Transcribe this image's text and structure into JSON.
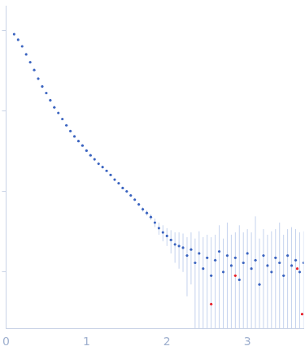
{
  "chart_data": {
    "type": "scatter",
    "log": "y",
    "grid": false,
    "tick_labels": "x",
    "xlim": [
      0,
      3.7
    ],
    "xticks": [
      0,
      1,
      2,
      3
    ],
    "ylim": [
      0.0002,
      2
    ],
    "yticks": [
      0.001,
      0.01,
      0.1,
      1
    ],
    "series": [
      {
        "color": "#3b64c0",
        "marker": "circle",
        "x": [
          0.1,
          0.15,
          0.2,
          0.25,
          0.3,
          0.35,
          0.4,
          0.45,
          0.5,
          0.55,
          0.6,
          0.65,
          0.7,
          0.75,
          0.8,
          0.85,
          0.9,
          0.95,
          1.0,
          1.05,
          1.1,
          1.15,
          1.2,
          1.25,
          1.3,
          1.35,
          1.4,
          1.45,
          1.5,
          1.55,
          1.6,
          1.65,
          1.7,
          1.75,
          1.8,
          1.85,
          1.9,
          1.95,
          2.0,
          2.05,
          2.1,
          2.15,
          2.2,
          2.25,
          2.3,
          2.35,
          2.4,
          2.45,
          2.5,
          2.55,
          2.6,
          2.65,
          2.7,
          2.75,
          2.8,
          2.85,
          2.9,
          2.95,
          3.0,
          3.05,
          3.1,
          3.15,
          3.2,
          3.25,
          3.3,
          3.35,
          3.4,
          3.45,
          3.5,
          3.55,
          3.6,
          3.65,
          3.7
        ],
        "values": [
          0.89,
          0.76,
          0.63,
          0.5,
          0.4,
          0.32,
          0.25,
          0.2,
          0.166,
          0.135,
          0.11,
          0.094,
          0.079,
          0.066,
          0.056,
          0.048,
          0.042,
          0.037,
          0.032,
          0.028,
          0.025,
          0.022,
          0.02,
          0.018,
          0.016,
          0.014,
          0.0126,
          0.011,
          0.01,
          0.0089,
          0.0079,
          0.0069,
          0.006,
          0.0054,
          0.0048,
          0.0041,
          0.0035,
          0.0031,
          0.0028,
          0.0025,
          0.0022,
          0.0021,
          0.002,
          0.0016,
          0.0019,
          0.0013,
          0.0017,
          0.0011,
          0.0015,
          0.0009,
          0.0014,
          0.0018,
          0.001,
          0.0016,
          0.0012,
          0.0015,
          0.0008,
          0.0013,
          0.0017,
          0.0011,
          0.0014,
          0.0007,
          0.0016,
          0.0012,
          0.001,
          0.0015,
          0.0013,
          0.0009,
          0.0016,
          0.0012,
          0.0014,
          0.001,
          0.0013
        ],
        "errors": [
          0.005,
          0.004,
          0.003,
          0.0025,
          0.002,
          0.0015,
          0.0012,
          0.001,
          0.0008,
          0.0007,
          0.0006,
          0.0005,
          0.0004,
          0.0004,
          0.0004,
          0.0003,
          0.0003,
          0.0003,
          0.0003,
          0.0003,
          0.0003,
          0.0003,
          0.0003,
          0.0003,
          0.0003,
          0.0003,
          0.0003,
          0.0003,
          0.0003,
          0.0003,
          0.0003,
          0.0003,
          0.0004,
          0.0004,
          0.0004,
          0.0005,
          0.0006,
          0.0007,
          0.0007,
          0.0008,
          0.0009,
          0.001,
          0.001,
          0.0011,
          0.0012,
          0.0013,
          0.0015,
          0.0016,
          0.0014,
          0.0018,
          0.0015,
          0.002,
          0.0016,
          0.0025,
          0.0017,
          0.0016,
          0.003,
          0.0018,
          0.0017,
          0.002,
          0.0035,
          0.0019,
          0.0018,
          0.0017,
          0.0022,
          0.0019,
          0.0028,
          0.002,
          0.0018,
          0.0024,
          0.002,
          0.0021,
          0.0019
        ]
      },
      {
        "color": "#e8202a",
        "marker": "circle",
        "x": [
          2.55,
          2.85,
          3.62,
          3.68
        ],
        "values": [
          0.0004,
          0.0009,
          0.0011,
          0.0003
        ]
      }
    ]
  }
}
